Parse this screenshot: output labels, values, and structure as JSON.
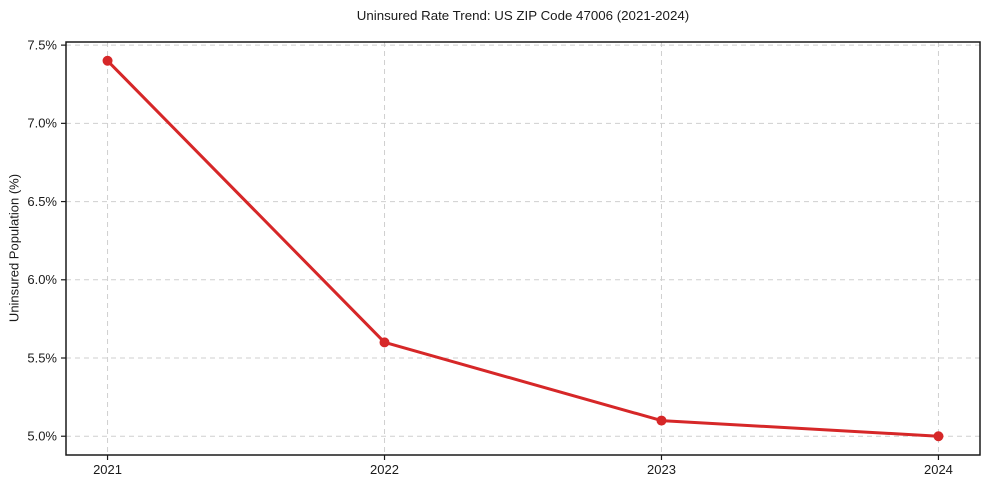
{
  "chart_data": {
    "type": "line",
    "title": "Uninsured Rate Trend: US ZIP Code 47006 (2021-2024)",
    "xlabel": "",
    "ylabel": "Uninsured Population (%)",
    "x": [
      2021,
      2022,
      2023,
      2024
    ],
    "x_tick_labels": [
      "2021",
      "2022",
      "2023",
      "2024"
    ],
    "series": [
      {
        "name": "uninsured-rate",
        "values": [
          7.4,
          5.6,
          5.1,
          5.0
        ],
        "color": "#d62728",
        "marker": "circle"
      }
    ],
    "y_ticks": [
      5.0,
      5.5,
      6.0,
      6.5,
      7.0,
      7.5
    ],
    "y_tick_labels": [
      "5.0%",
      "5.5%",
      "6.0%",
      "6.5%",
      "7.0%",
      "7.5%"
    ],
    "xlim": [
      2020.85,
      2024.15
    ],
    "ylim": [
      4.88,
      7.52
    ],
    "grid": "dashed-both-axes",
    "legend": "none",
    "colors": {
      "line": "#d62728",
      "grid": "#cfcfcf",
      "spine": "#1a1a1a",
      "background": "#ffffff",
      "text": "#1a1a1a"
    }
  }
}
